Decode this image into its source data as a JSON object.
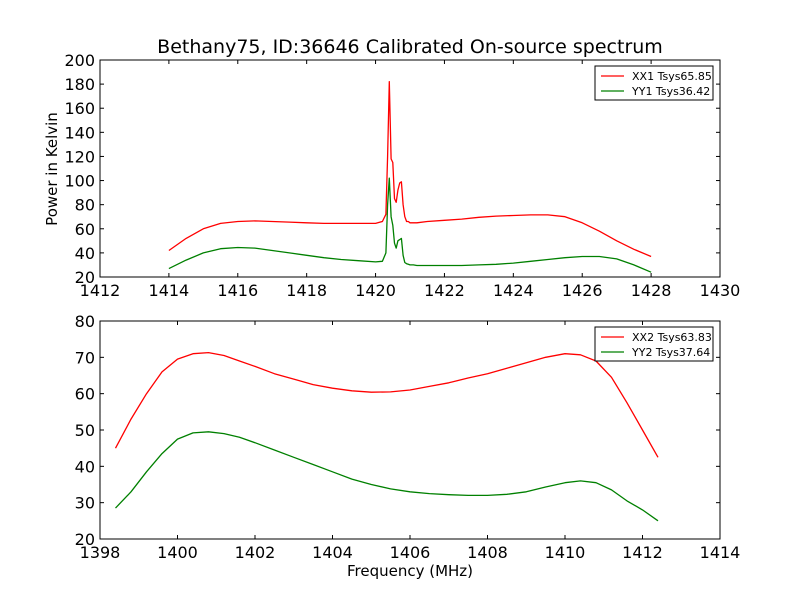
{
  "figure": {
    "title": "Bethany75, ID:36646 Calibrated On-source spectrum",
    "xlabel": "Frequency (MHz)",
    "ylabel": "Power in Kelvin"
  },
  "chart_data": [
    {
      "type": "line",
      "title": "Bethany75, ID:36646 Calibrated On-source spectrum",
      "xlabel": "",
      "ylabel": "Power in Kelvin",
      "xlim": [
        1412,
        1430
      ],
      "ylim": [
        20,
        200
      ],
      "xticks": [
        1412,
        1414,
        1416,
        1418,
        1420,
        1422,
        1424,
        1426,
        1428,
        1430
      ],
      "yticks": [
        20,
        40,
        60,
        80,
        100,
        120,
        140,
        160,
        180,
        200
      ],
      "grid": false,
      "legend_position": "top-right",
      "series": [
        {
          "name": "XX1 Tsys65.85",
          "color": "#ff0000",
          "x": [
            1414.0,
            1414.5,
            1415.0,
            1415.5,
            1416.0,
            1416.5,
            1417.0,
            1417.5,
            1418.0,
            1418.5,
            1419.0,
            1419.5,
            1420.0,
            1420.2,
            1420.3,
            1420.35,
            1420.4,
            1420.45,
            1420.5,
            1420.55,
            1420.6,
            1420.65,
            1420.7,
            1420.75,
            1420.8,
            1420.85,
            1420.9,
            1420.95,
            1421.0,
            1421.1,
            1421.2,
            1421.5,
            1422.0,
            1422.5,
            1423.0,
            1423.5,
            1424.0,
            1424.5,
            1425.0,
            1425.5,
            1426.0,
            1426.5,
            1427.0,
            1427.5,
            1428.0
          ],
          "y": [
            42,
            52,
            60,
            64.5,
            66,
            66.5,
            66,
            65.5,
            65,
            64.5,
            64.5,
            64.5,
            64.5,
            66,
            72,
            120,
            182,
            118,
            115,
            85,
            82,
            92,
            98,
            99,
            80,
            70,
            66,
            66,
            65,
            65,
            65,
            66,
            67,
            68,
            69.5,
            70.5,
            71,
            71.5,
            71.5,
            70,
            65,
            58,
            50,
            43,
            37
          ]
        },
        {
          "name": "YY1 Tsys36.42",
          "color": "#008000",
          "x": [
            1414.0,
            1414.5,
            1415.0,
            1415.5,
            1416.0,
            1416.5,
            1417.0,
            1417.5,
            1418.0,
            1418.5,
            1419.0,
            1419.5,
            1420.0,
            1420.2,
            1420.3,
            1420.35,
            1420.4,
            1420.45,
            1420.5,
            1420.55,
            1420.6,
            1420.65,
            1420.7,
            1420.75,
            1420.8,
            1420.85,
            1420.9,
            1420.95,
            1421.0,
            1421.1,
            1421.2,
            1421.5,
            1422.0,
            1422.5,
            1423.0,
            1423.5,
            1424.0,
            1424.5,
            1425.0,
            1425.5,
            1426.0,
            1426.5,
            1427.0,
            1427.5,
            1428.0
          ],
          "y": [
            27,
            34,
            40,
            43.5,
            44.5,
            44,
            42,
            40,
            38,
            36,
            34.5,
            33.5,
            32.5,
            33,
            40,
            80,
            102,
            70,
            63,
            48,
            44,
            50,
            51,
            52,
            38,
            32,
            31,
            30.5,
            30,
            30,
            29.5,
            29.5,
            29.5,
            29.5,
            30,
            30.5,
            31.5,
            33,
            34.5,
            36,
            37,
            37,
            35,
            30,
            24
          ]
        }
      ]
    },
    {
      "type": "line",
      "title": "",
      "xlabel": "Frequency (MHz)",
      "ylabel": "",
      "xlim": [
        1398,
        1414
      ],
      "ylim": [
        20,
        80
      ],
      "xticks": [
        1398,
        1400,
        1402,
        1404,
        1406,
        1408,
        1410,
        1412,
        1414
      ],
      "yticks": [
        20,
        30,
        40,
        50,
        60,
        70,
        80
      ],
      "grid": false,
      "legend_position": "top-right",
      "series": [
        {
          "name": "XX2 Tsys63.83",
          "color": "#ff0000",
          "x": [
            1398.4,
            1398.8,
            1399.2,
            1399.6,
            1400.0,
            1400.4,
            1400.8,
            1401.2,
            1401.6,
            1402.0,
            1402.5,
            1403.0,
            1403.5,
            1404.0,
            1404.5,
            1405.0,
            1405.5,
            1406.0,
            1406.5,
            1407.0,
            1407.5,
            1408.0,
            1408.5,
            1409.0,
            1409.5,
            1410.0,
            1410.4,
            1410.8,
            1411.2,
            1411.6,
            1412.0,
            1412.4
          ],
          "y": [
            45,
            53,
            60,
            66,
            69.5,
            71,
            71.3,
            70.5,
            69,
            67.5,
            65.5,
            64,
            62.5,
            61.5,
            60.8,
            60.4,
            60.5,
            61,
            62,
            63,
            64.3,
            65.5,
            67,
            68.5,
            70,
            71,
            70.7,
            69,
            64.5,
            57.5,
            50,
            42.5
          ]
        },
        {
          "name": "YY2 Tsys37.64",
          "color": "#008000",
          "x": [
            1398.4,
            1398.8,
            1399.2,
            1399.6,
            1400.0,
            1400.4,
            1400.8,
            1401.2,
            1401.6,
            1402.0,
            1402.5,
            1403.0,
            1403.5,
            1404.0,
            1404.5,
            1405.0,
            1405.5,
            1406.0,
            1406.5,
            1407.0,
            1407.5,
            1408.0,
            1408.5,
            1409.0,
            1409.5,
            1410.0,
            1410.4,
            1410.8,
            1411.2,
            1411.6,
            1412.0,
            1412.4
          ],
          "y": [
            28.5,
            33,
            38.5,
            43.5,
            47.5,
            49.2,
            49.5,
            49,
            48,
            46.5,
            44.5,
            42.5,
            40.5,
            38.5,
            36.5,
            35,
            33.8,
            33,
            32.5,
            32.2,
            32,
            32,
            32.3,
            33,
            34.3,
            35.5,
            36,
            35.5,
            33.5,
            30.5,
            28,
            25
          ]
        }
      ]
    }
  ]
}
